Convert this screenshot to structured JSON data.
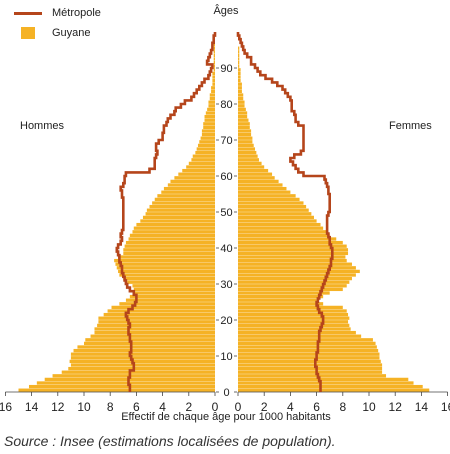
{
  "legend": {
    "metropole": "Métropole",
    "guyane": "Guyane"
  },
  "source": "Source : Insee (estimations localisées de population).",
  "chart_data": {
    "type": "bar",
    "orientation": "population-pyramid",
    "title": "",
    "center_axis_label": "Âges",
    "left_label": "Hommes",
    "right_label": "Femmes",
    "xlabel": "Effectif de chaque âge pour 1000 habitants",
    "x_ticks_left": [
      "16",
      "14",
      "12",
      "10",
      "8",
      "6",
      "4",
      "2",
      "0"
    ],
    "x_ticks_right": [
      "0",
      "2",
      "4",
      "6",
      "8",
      "10",
      "12",
      "14",
      "16"
    ],
    "age_ticks": [
      "0",
      "10",
      "20",
      "30",
      "40",
      "50",
      "60",
      "70",
      "80",
      "90"
    ],
    "xlim": [
      0,
      16
    ],
    "ylim": [
      0,
      99
    ],
    "colors": {
      "guyane": "#f5b225",
      "metropole": "#b5451b"
    },
    "ages": [
      0,
      1,
      2,
      3,
      4,
      5,
      6,
      7,
      8,
      9,
      10,
      11,
      12,
      13,
      14,
      15,
      16,
      17,
      18,
      19,
      20,
      21,
      22,
      23,
      24,
      25,
      26,
      27,
      28,
      29,
      30,
      31,
      32,
      33,
      34,
      35,
      36,
      37,
      38,
      39,
      40,
      41,
      42,
      43,
      44,
      45,
      46,
      47,
      48,
      49,
      50,
      51,
      52,
      53,
      54,
      55,
      56,
      57,
      58,
      59,
      60,
      61,
      62,
      63,
      64,
      65,
      66,
      67,
      68,
      69,
      70,
      71,
      72,
      73,
      74,
      75,
      76,
      77,
      78,
      79,
      80,
      81,
      82,
      83,
      84,
      85,
      86,
      87,
      88,
      89,
      90,
      91,
      92,
      93,
      94,
      95,
      96,
      97,
      98,
      99
    ],
    "series": [
      {
        "name": "Guyane",
        "side": "Hommes",
        "values": [
          15.0,
          14.2,
          13.6,
          13.0,
          12.4,
          11.7,
          11.2,
          11.0,
          11.1,
          11.0,
          11.0,
          10.8,
          10.5,
          10.0,
          9.9,
          9.5,
          9.2,
          9.2,
          9.0,
          8.9,
          8.9,
          8.5,
          8.2,
          7.9,
          7.3,
          6.8,
          6.5,
          6.2,
          6.2,
          6.3,
          6.7,
          7.0,
          7.3,
          7.4,
          7.5,
          7.6,
          7.7,
          7.4,
          7.0,
          7.0,
          6.9,
          6.8,
          6.6,
          6.5,
          6.3,
          6.2,
          6.0,
          5.7,
          5.5,
          5.3,
          5.2,
          5.0,
          4.8,
          4.6,
          4.4,
          4.1,
          3.9,
          3.6,
          3.4,
          3.1,
          2.8,
          2.5,
          2.2,
          2.0,
          1.8,
          1.7,
          1.5,
          1.4,
          1.3,
          1.2,
          1.1,
          1.0,
          1.0,
          0.9,
          0.9,
          0.8,
          0.8,
          0.7,
          0.6,
          0.5,
          0.5,
          0.4,
          0.4,
          0.3,
          0.3,
          0.2,
          0.2,
          0.2,
          0.2,
          0.1,
          0.1,
          0.1,
          0.1,
          0.1,
          0.1,
          0.1,
          0.1,
          0.0,
          0.0,
          0.0
        ]
      },
      {
        "name": "Guyane",
        "side": "Femmes",
        "values": [
          14.6,
          14.1,
          13.4,
          13.0,
          11.3,
          11.0,
          11.0,
          11.0,
          10.9,
          10.8,
          10.8,
          10.7,
          10.6,
          10.5,
          10.3,
          9.4,
          9.0,
          8.6,
          8.5,
          8.4,
          8.5,
          8.4,
          8.3,
          8.0,
          6.5,
          6.0,
          6.5,
          7.0,
          8.0,
          8.3,
          8.5,
          8.7,
          9.0,
          9.3,
          9.0,
          8.7,
          8.3,
          8.2,
          8.4,
          8.4,
          8.3,
          8.0,
          7.5,
          7.0,
          6.8,
          6.5,
          6.3,
          6.0,
          5.8,
          5.6,
          5.4,
          5.2,
          5.0,
          4.7,
          4.4,
          4.0,
          3.7,
          3.4,
          3.1,
          2.8,
          2.6,
          2.3,
          2.0,
          1.8,
          1.6,
          1.5,
          1.4,
          1.3,
          1.2,
          1.1,
          1.1,
          1.0,
          1.0,
          0.9,
          0.9,
          0.8,
          0.7,
          0.7,
          0.6,
          0.5,
          0.5,
          0.4,
          0.4,
          0.3,
          0.3,
          0.3,
          0.2,
          0.2,
          0.2,
          0.2,
          0.1,
          0.1,
          0.1,
          0.1,
          0.1,
          0.1,
          0.0,
          0.0,
          0.0,
          0.0
        ]
      },
      {
        "name": "Métropole",
        "side": "Hommes",
        "values": [
          6.5,
          6.5,
          6.6,
          6.6,
          6.5,
          6.5,
          6.2,
          6.2,
          6.3,
          6.4,
          6.5,
          6.4,
          6.4,
          6.4,
          6.5,
          6.5,
          6.6,
          6.6,
          6.5,
          6.6,
          6.7,
          6.8,
          6.6,
          6.3,
          6.1,
          6.0,
          6.0,
          6.2,
          6.5,
          6.7,
          6.8,
          6.9,
          7.0,
          7.1,
          7.1,
          7.2,
          7.3,
          7.3,
          7.4,
          7.5,
          7.4,
          7.2,
          7.1,
          7.2,
          7.1,
          7.0,
          7.0,
          7.0,
          7.0,
          7.0,
          7.0,
          7.0,
          7.0,
          7.0,
          7.1,
          7.1,
          7.2,
          7.0,
          6.9,
          6.9,
          6.8,
          5.0,
          4.6,
          4.6,
          4.6,
          4.5,
          4.4,
          4.5,
          4.5,
          4.3,
          4.0,
          4.0,
          3.9,
          3.9,
          3.7,
          3.6,
          3.4,
          3.1,
          3.0,
          2.6,
          2.3,
          1.8,
          1.6,
          1.4,
          1.2,
          1.0,
          0.8,
          0.5,
          0.4,
          0.3,
          0.2,
          0.6,
          0.5,
          0.4,
          0.3,
          0.2,
          0.2,
          0.1,
          0.1,
          0.0
        ]
      },
      {
        "name": "Métropole",
        "side": "Femmes",
        "values": [
          6.3,
          6.3,
          6.3,
          6.2,
          6.1,
          6.0,
          6.0,
          5.9,
          5.9,
          6.0,
          6.0,
          6.1,
          6.1,
          6.1,
          6.2,
          6.2,
          6.2,
          6.3,
          6.4,
          6.5,
          6.5,
          6.4,
          6.2,
          6.1,
          6.0,
          6.1,
          6.2,
          6.3,
          6.4,
          6.5,
          6.6,
          6.7,
          6.8,
          6.9,
          7.0,
          7.1,
          7.1,
          7.2,
          7.2,
          7.2,
          7.1,
          7.0,
          7.0,
          6.9,
          6.8,
          6.8,
          6.8,
          6.8,
          6.8,
          6.9,
          7.0,
          7.0,
          7.0,
          7.0,
          7.0,
          6.9,
          6.9,
          6.8,
          6.7,
          6.6,
          5.0,
          4.6,
          4.4,
          4.2,
          4.0,
          4.3,
          4.8,
          5.0,
          5.0,
          5.0,
          5.0,
          5.0,
          5.0,
          5.0,
          4.6,
          4.4,
          4.4,
          4.3,
          4.1,
          4.1,
          4.1,
          4.0,
          3.8,
          3.6,
          3.4,
          3.0,
          2.6,
          2.1,
          1.7,
          1.5,
          1.3,
          1.0,
          1.0,
          0.7,
          0.5,
          0.4,
          0.3,
          0.2,
          0.1,
          0.0
        ]
      }
    ]
  }
}
